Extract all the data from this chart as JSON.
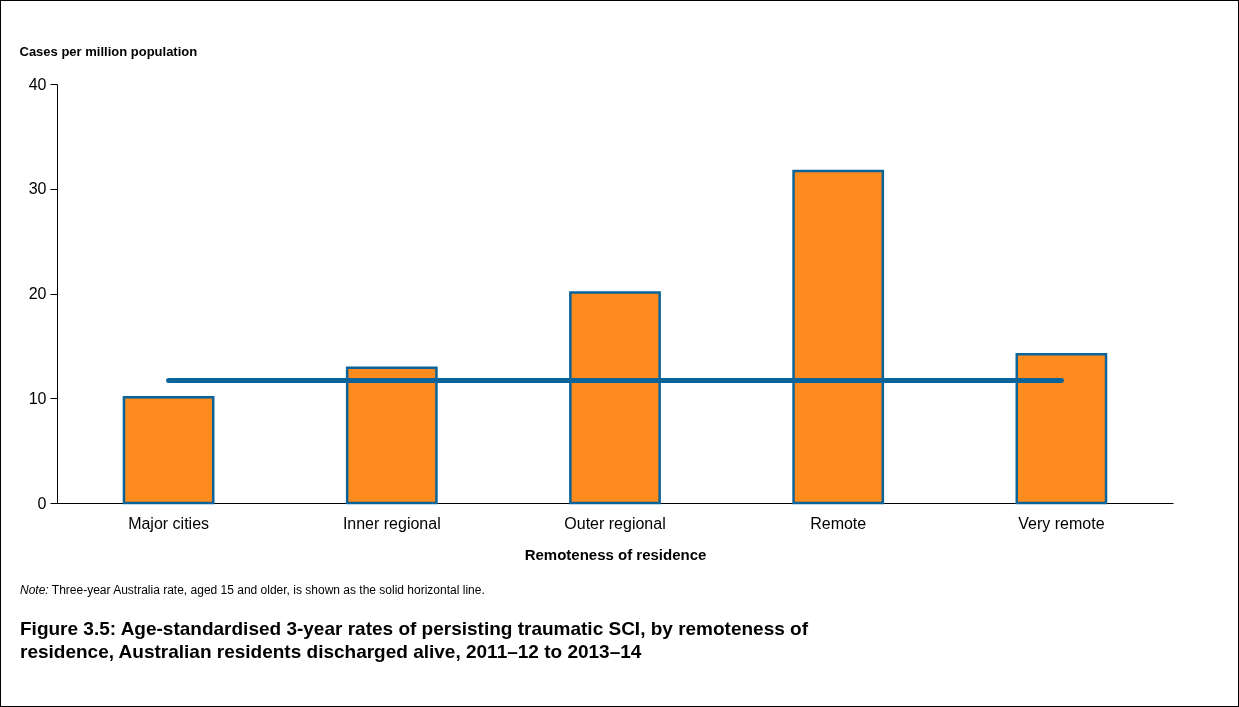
{
  "chart_data": {
    "type": "bar",
    "title": "Figure 3.5: Age-standardised 3-year rates of persisting traumatic SCI, by remoteness of residence, Australian residents discharged alive, 2011–12 to 2013–14",
    "xlabel": "Remoteness of residence",
    "ylabel": "Cases per million population",
    "categories": [
      "Major cities",
      "Inner regional",
      "Outer regional",
      "Remote",
      "Very remote"
    ],
    "values": [
      10.1,
      12.9,
      20.1,
      31.7,
      14.2
    ],
    "color": "#fd8b1d",
    "ylim": [
      0,
      40
    ],
    "yticks": [
      0,
      10,
      20,
      30,
      40
    ],
    "grid": false,
    "ref_lines": [
      {
        "axis": "y",
        "value": 11.7,
        "color": "#0a6499"
      }
    ],
    "annotations": [
      "Note: Three-year Australia rate, aged 15 and older, is shown as the solid horizontal line."
    ]
  }
}
